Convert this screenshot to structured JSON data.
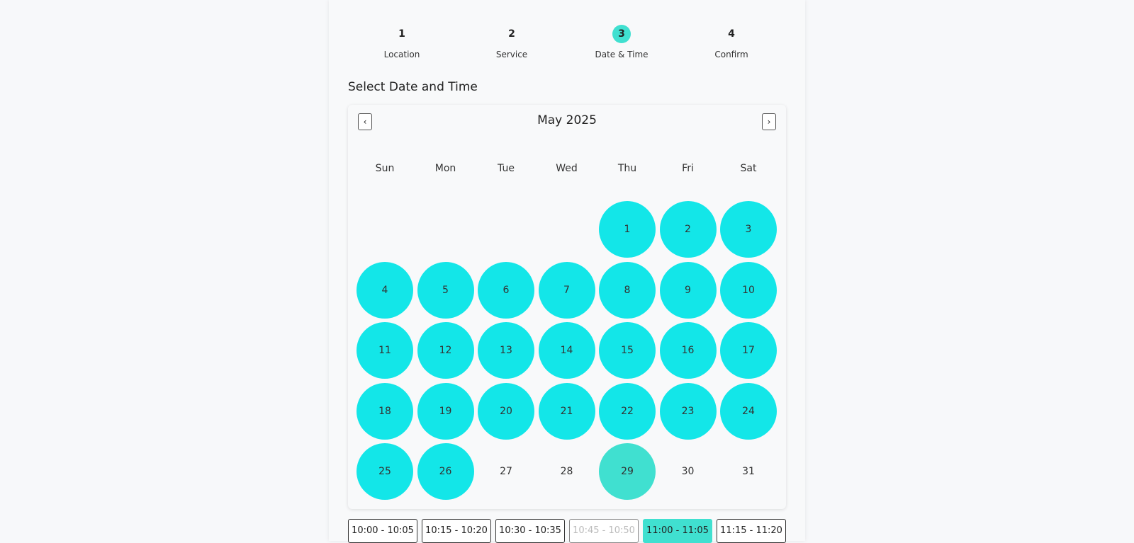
{
  "steps": [
    {
      "number": "1",
      "label": "Location"
    },
    {
      "number": "2",
      "label": "Service"
    },
    {
      "number": "3",
      "label": "Date & Time",
      "active": true,
      "color": "#40e0d0"
    },
    {
      "number": "4",
      "label": "Confirm"
    }
  ],
  "heading": "Select Date and Time",
  "calendar": {
    "month": "May 2025",
    "prev": "‹",
    "next": "›",
    "weekdays": [
      "Sun",
      "Mon",
      "Tue",
      "Wed",
      "Thu",
      "Fri",
      "Sat"
    ],
    "days": [
      null,
      null,
      null,
      null,
      {
        "label": "1",
        "fill": "#13e6e8"
      },
      {
        "label": "2",
        "fill": "#13e6e8"
      },
      {
        "label": "3",
        "fill": "#13e6e8"
      },
      {
        "label": "4",
        "fill": "#13e6e8"
      },
      {
        "label": "5",
        "fill": "#13e6e8"
      },
      {
        "label": "6",
        "fill": "#13e6e8"
      },
      {
        "label": "7",
        "fill": "#13e6e8"
      },
      {
        "label": "8",
        "fill": "#13e6e8"
      },
      {
        "label": "9",
        "fill": "#13e6e8"
      },
      {
        "label": "10",
        "fill": "#13e6e8"
      },
      {
        "label": "11",
        "fill": "#13e6e8"
      },
      {
        "label": "12",
        "fill": "#13e6e8"
      },
      {
        "label": "13",
        "fill": "#13e6e8"
      },
      {
        "label": "14",
        "fill": "#13e6e8"
      },
      {
        "label": "15",
        "fill": "#13e6e8"
      },
      {
        "label": "16",
        "fill": "#13e6e8"
      },
      {
        "label": "17",
        "fill": "#13e6e8"
      },
      {
        "label": "18",
        "fill": "#13e6e8"
      },
      {
        "label": "19",
        "fill": "#13e6e8"
      },
      {
        "label": "20",
        "fill": "#13e6e8"
      },
      {
        "label": "21",
        "fill": "#13e6e8"
      },
      {
        "label": "22",
        "fill": "#13e6e8"
      },
      {
        "label": "23",
        "fill": "#13e6e8"
      },
      {
        "label": "24",
        "fill": "#13e6e8"
      },
      {
        "label": "25",
        "fill": "#13e6e8"
      },
      {
        "label": "26",
        "fill": "#13e6e8"
      },
      {
        "label": "27"
      },
      {
        "label": "28"
      },
      {
        "label": "29",
        "fill": "#40e0d0"
      },
      {
        "label": "30"
      },
      {
        "label": "31"
      }
    ]
  },
  "time_slots": [
    {
      "label": "10:00 - 10:05"
    },
    {
      "label": "10:15 - 10:20"
    },
    {
      "label": "10:30 - 10:35"
    },
    {
      "label": "10:45 - 10:50",
      "disabled": true
    },
    {
      "label": "11:00 - 11:05",
      "selected": true,
      "color": "#40e0d0"
    },
    {
      "label": "11:15 - 11:20"
    }
  ]
}
